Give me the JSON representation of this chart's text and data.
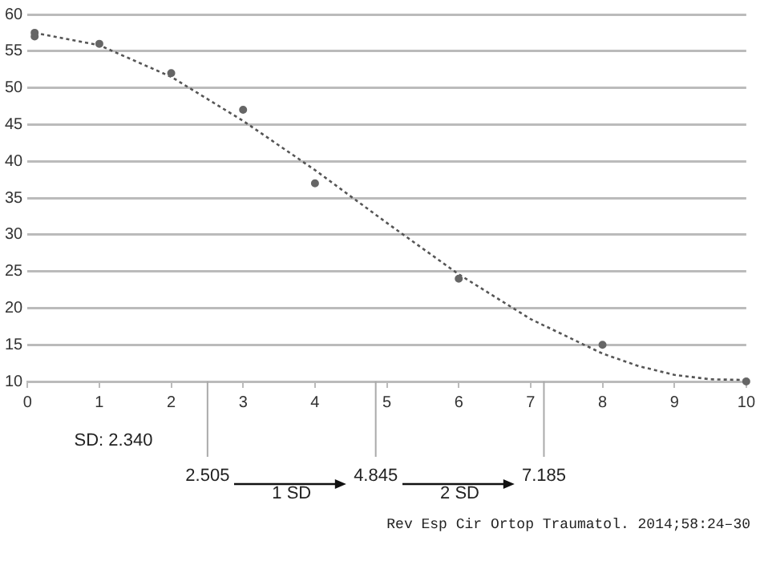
{
  "chart_data": {
    "type": "scatter",
    "series": [
      {
        "type": "scatter",
        "color": "#666666",
        "marker": "circle",
        "x": [
          0.1,
          0.1,
          1,
          2,
          3,
          4,
          6,
          8,
          10
        ],
        "values": [
          57,
          57.5,
          56,
          52,
          47,
          37,
          24,
          15,
          10
        ]
      },
      {
        "type": "line",
        "color": "#555555",
        "marker": "none",
        "line_style": "dotted",
        "x": [
          0.1,
          1,
          2,
          3,
          4,
          5,
          6,
          7,
          8,
          8.5,
          9,
          9.5,
          10
        ],
        "values": [
          57.5,
          55.8,
          51.5,
          45.5,
          38.8,
          31.6,
          24.6,
          18.5,
          13.8,
          12.1,
          10.9,
          10.3,
          10.2
        ]
      }
    ],
    "xlim": [
      0,
      10
    ],
    "xticks": [
      0,
      1,
      2,
      3,
      4,
      5,
      6,
      7,
      8,
      9,
      10
    ],
    "ylim": [
      10,
      60
    ],
    "yticks": [
      10,
      15,
      20,
      25,
      30,
      35,
      40,
      45,
      50,
      55,
      60
    ],
    "grid": "y",
    "legend": false,
    "ref_lines": [
      {
        "axis": "x",
        "value": 2.505,
        "label": "2.505",
        "color": "#aaaaaa"
      },
      {
        "axis": "x",
        "value": 4.845,
        "label": "4.845",
        "color": "#aaaaaa"
      },
      {
        "axis": "x",
        "value": 7.185,
        "label": "7.185",
        "color": "#aaaaaa"
      }
    ],
    "annotations": [
      "SD: 2.340",
      "1 SD",
      "2 SD",
      "Rev Esp Cir Ortop Traumatol. 2014;58:24–30"
    ]
  }
}
